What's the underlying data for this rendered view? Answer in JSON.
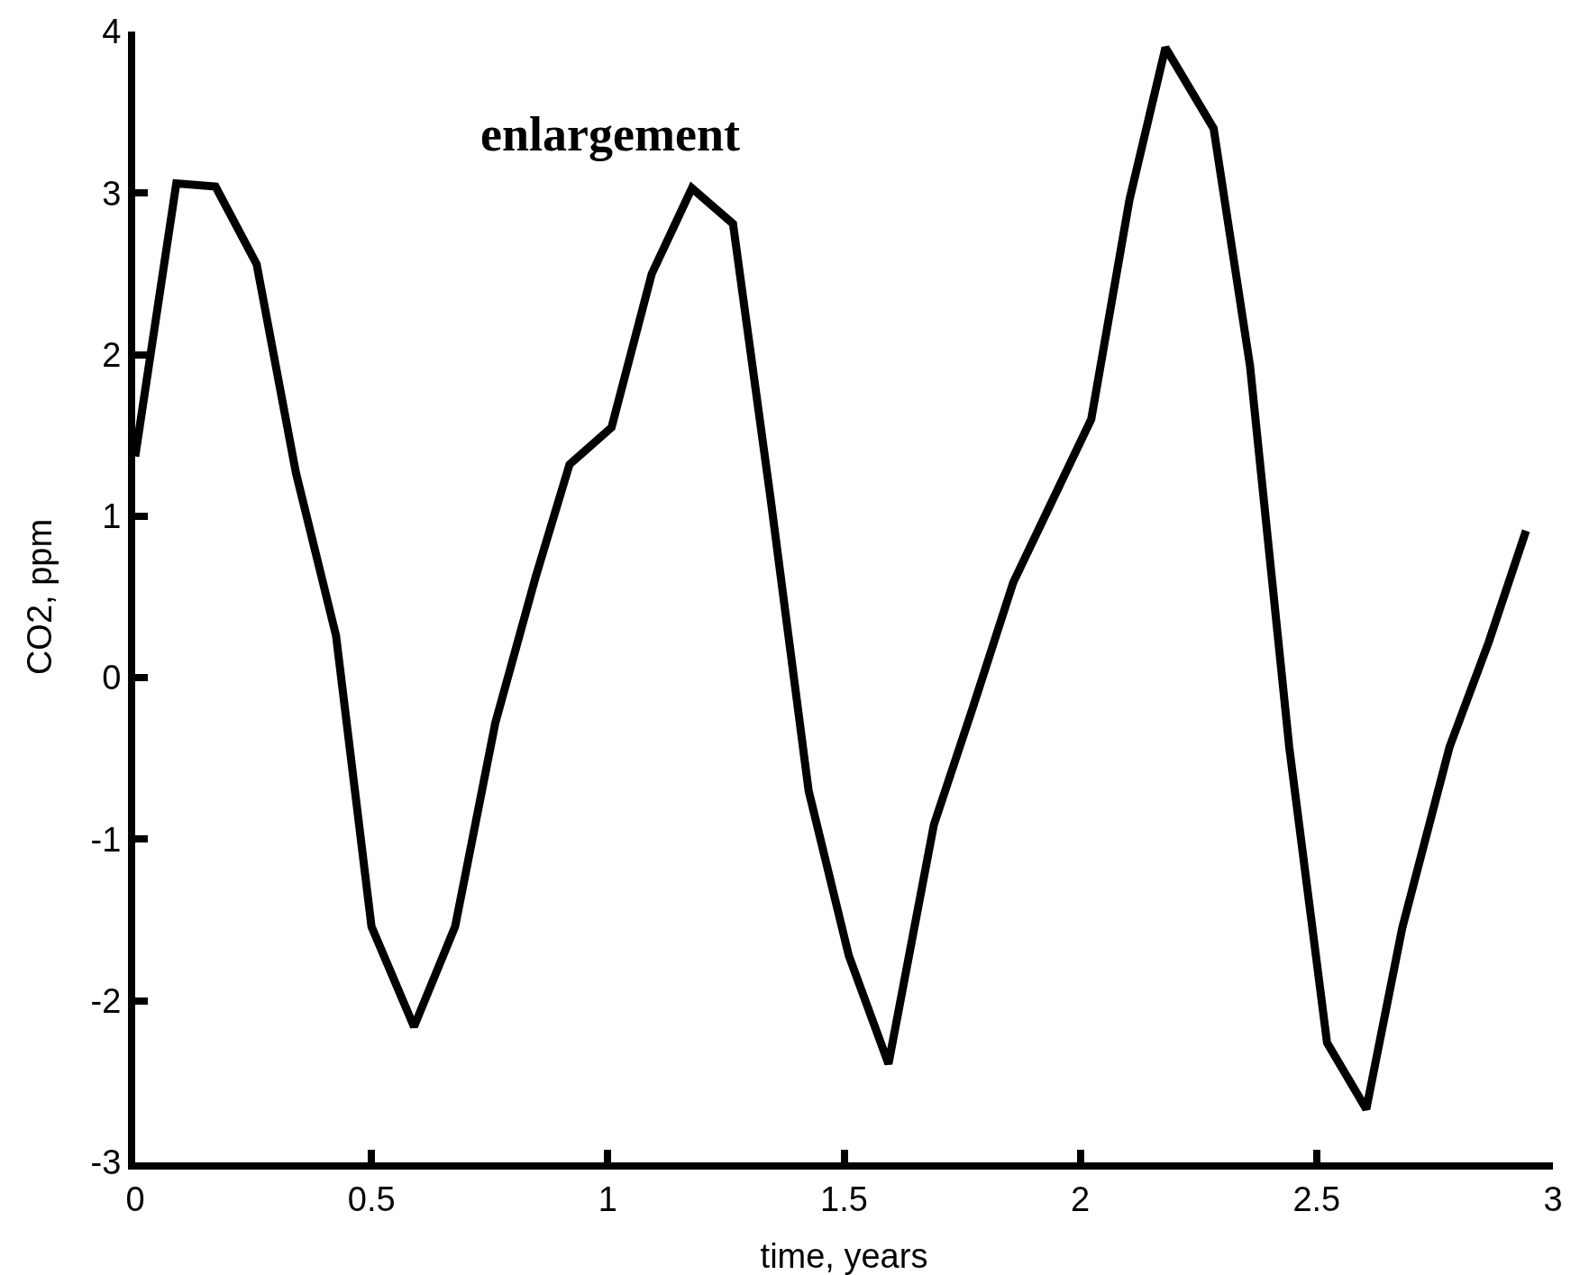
{
  "chart_data": {
    "type": "line",
    "xlabel": "time, years",
    "ylabel": "CO2, ppm",
    "annotations": [
      "enlargement"
    ],
    "x": [
      0,
      0.087,
      0.17,
      0.257,
      0.34,
      0.425,
      0.5,
      0.59,
      0.677,
      0.762,
      0.847,
      0.919,
      1.008,
      1.093,
      1.178,
      1.265,
      1.344,
      1.425,
      1.51,
      1.594,
      1.69,
      1.773,
      1.858,
      1.938,
      2.023,
      2.104,
      2.18,
      2.282,
      2.359,
      2.442,
      2.522,
      2.605,
      2.681,
      2.781,
      2.864,
      2.943
    ],
    "series": [
      {
        "color": "#000000",
        "values": [
          1.37,
          3.06,
          3.04,
          2.56,
          1.27,
          0.26,
          -1.54,
          -2.16,
          -1.54,
          -0.28,
          0.62,
          1.32,
          1.55,
          2.5,
          3.03,
          2.81,
          1.12,
          -0.7,
          -1.72,
          -2.39,
          -0.91,
          -0.18,
          0.59,
          1.08,
          1.6,
          2.96,
          3.9,
          3.4,
          1.93,
          -0.43,
          -2.26,
          -2.67,
          -1.55,
          -0.43,
          0.22,
          0.91
        ]
      }
    ],
    "xlim": [
      0,
      3
    ],
    "xticks": [
      0,
      0.5,
      1,
      1.5,
      2,
      2.5,
      3
    ],
    "ylim": [
      -3,
      4
    ],
    "yticks": [
      -3,
      -2,
      -1,
      0,
      1,
      2,
      3,
      4
    ],
    "grid": false,
    "marker": "none",
    "line_style": "solid"
  }
}
